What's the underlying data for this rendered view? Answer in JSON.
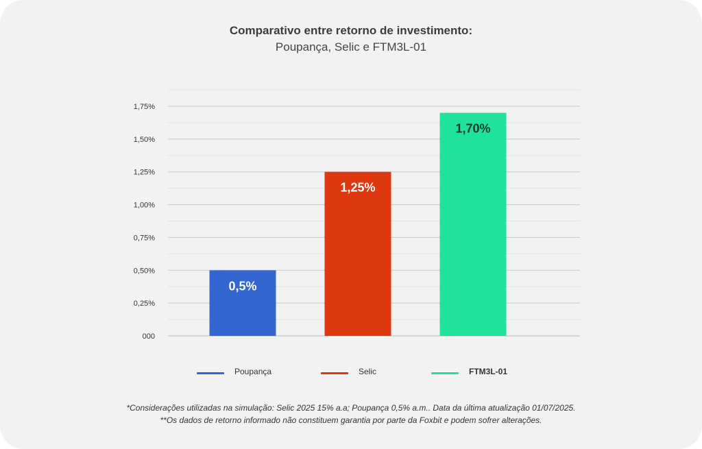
{
  "chart_data": {
    "type": "bar",
    "title": "Comparativo entre retorno de investimento:",
    "subtitle": "Poupança, Selic e FTM3L-01",
    "categories": [
      "Poupança",
      "Selic",
      "FTM3L-01"
    ],
    "values": [
      0.5,
      1.25,
      1.7
    ],
    "data_labels": [
      "0,5%",
      "1,25%",
      "1,70%"
    ],
    "colors": [
      "#3366d1",
      "#dd3810",
      "#20e39b"
    ],
    "label_colors": [
      "#ffffff",
      "#ffffff",
      "#163a2c"
    ],
    "yticks": [
      0,
      0.25,
      0.5,
      0.75,
      1.0,
      1.25,
      1.5,
      1.75
    ],
    "ytick_labels": [
      "000",
      "0,25%",
      "0,50%",
      "0,75%",
      "1,00%",
      "1,25%",
      "1,50%",
      "1,75%"
    ],
    "ylim": [
      0,
      1.75
    ],
    "grid": true,
    "legend_position": "bottom"
  },
  "legend": [
    {
      "label": "Poupança",
      "color": "#3366d1"
    },
    {
      "label": "Selic",
      "color": "#dd3810"
    },
    {
      "label": "FTM3L-01",
      "color": "#20e39b"
    }
  ],
  "footnotes": {
    "line1": "*Considerações utilizadas na simulação: Selic 2025 15% a.a; Poupança 0,5% a.m.. Data da última atualização 01/07/2025.",
    "line2": "**Os dados de retorno informado não constituem garantia por parte da Foxbit e podem sofrer alterações."
  }
}
